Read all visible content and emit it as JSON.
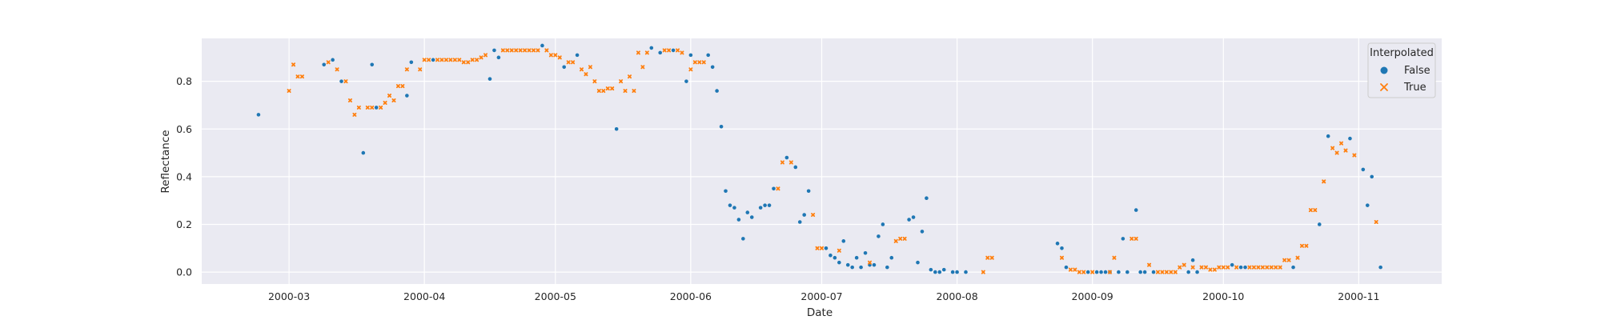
{
  "chart_data": {
    "type": "scatter",
    "xlabel": "Date",
    "ylabel": "Reflectance",
    "xlim": [
      "2000-02-10",
      "2000-11-20"
    ],
    "ylim": [
      -0.05,
      0.98
    ],
    "grid": true,
    "x_ticks": [
      "2000-03-01",
      "2000-04-01",
      "2000-05-01",
      "2000-06-01",
      "2000-07-01",
      "2000-08-01",
      "2000-09-01",
      "2000-10-01",
      "2000-11-01"
    ],
    "x_tick_labels": [
      "2000-03",
      "2000-04",
      "2000-05",
      "2000-06",
      "2000-07",
      "2000-08",
      "2000-09",
      "2000-10",
      "2000-11"
    ],
    "y_ticks": [
      0.0,
      0.2,
      0.4,
      0.6,
      0.8
    ],
    "y_tick_labels": [
      "0.0",
      "0.2",
      "0.4",
      "0.6",
      "0.8"
    ],
    "legend": {
      "title": "Interpolated",
      "placement": "upper right"
    },
    "series": [
      {
        "name": "False",
        "color": "#1f77b4",
        "marker": "circle",
        "points": [
          [
            "2000-02-23",
            0.66
          ],
          [
            "2000-03-09",
            0.87
          ],
          [
            "2000-03-11",
            0.89
          ],
          [
            "2000-03-13",
            0.8
          ],
          [
            "2000-03-18",
            0.5
          ],
          [
            "2000-03-20",
            0.87
          ],
          [
            "2000-03-21",
            0.69
          ],
          [
            "2000-03-28",
            0.74
          ],
          [
            "2000-03-29",
            0.88
          ],
          [
            "2000-04-03",
            0.89
          ],
          [
            "2000-04-16",
            0.81
          ],
          [
            "2000-04-17",
            0.93
          ],
          [
            "2000-04-18",
            0.9
          ],
          [
            "2000-04-28",
            0.95
          ],
          [
            "2000-05-03",
            0.86
          ],
          [
            "2000-05-06",
            0.91
          ],
          [
            "2000-05-15",
            0.6
          ],
          [
            "2000-05-23",
            0.94
          ],
          [
            "2000-05-25",
            0.92
          ],
          [
            "2000-05-28",
            0.93
          ],
          [
            "2000-05-31",
            0.8
          ],
          [
            "2000-06-01",
            0.91
          ],
          [
            "2000-06-05",
            0.91
          ],
          [
            "2000-06-06",
            0.86
          ],
          [
            "2000-06-07",
            0.76
          ],
          [
            "2000-06-08",
            0.61
          ],
          [
            "2000-06-09",
            0.34
          ],
          [
            "2000-06-10",
            0.28
          ],
          [
            "2000-06-11",
            0.27
          ],
          [
            "2000-06-12",
            0.22
          ],
          [
            "2000-06-13",
            0.14
          ],
          [
            "2000-06-14",
            0.25
          ],
          [
            "2000-06-15",
            0.23
          ],
          [
            "2000-06-17",
            0.27
          ],
          [
            "2000-06-18",
            0.28
          ],
          [
            "2000-06-19",
            0.28
          ],
          [
            "2000-06-20",
            0.35
          ],
          [
            "2000-06-23",
            0.48
          ],
          [
            "2000-06-25",
            0.44
          ],
          [
            "2000-06-26",
            0.21
          ],
          [
            "2000-06-27",
            0.24
          ],
          [
            "2000-06-28",
            0.34
          ],
          [
            "2000-07-02",
            0.1
          ],
          [
            "2000-07-03",
            0.07
          ],
          [
            "2000-07-04",
            0.06
          ],
          [
            "2000-07-05",
            0.04
          ],
          [
            "2000-07-06",
            0.13
          ],
          [
            "2000-07-07",
            0.03
          ],
          [
            "2000-07-08",
            0.02
          ],
          [
            "2000-07-09",
            0.06
          ],
          [
            "2000-07-10",
            0.02
          ],
          [
            "2000-07-11",
            0.08
          ],
          [
            "2000-07-12",
            0.03
          ],
          [
            "2000-07-13",
            0.03
          ],
          [
            "2000-07-14",
            0.15
          ],
          [
            "2000-07-15",
            0.2
          ],
          [
            "2000-07-16",
            0.02
          ],
          [
            "2000-07-17",
            0.06
          ],
          [
            "2000-07-21",
            0.22
          ],
          [
            "2000-07-22",
            0.23
          ],
          [
            "2000-07-23",
            0.04
          ],
          [
            "2000-07-24",
            0.17
          ],
          [
            "2000-07-25",
            0.31
          ],
          [
            "2000-07-26",
            0.01
          ],
          [
            "2000-07-27",
            0.0
          ],
          [
            "2000-07-28",
            0.0
          ],
          [
            "2000-07-29",
            0.01
          ],
          [
            "2000-07-31",
            0.0
          ],
          [
            "2000-08-01",
            0.0
          ],
          [
            "2000-08-03",
            0.0
          ],
          [
            "2000-08-24",
            0.12
          ],
          [
            "2000-08-25",
            0.1
          ],
          [
            "2000-08-26",
            0.02
          ],
          [
            "2000-08-31",
            0.0
          ],
          [
            "2000-09-02",
            0.0
          ],
          [
            "2000-09-03",
            0.0
          ],
          [
            "2000-09-04",
            0.0
          ],
          [
            "2000-09-05",
            0.0
          ],
          [
            "2000-09-07",
            0.0
          ],
          [
            "2000-09-08",
            0.14
          ],
          [
            "2000-09-09",
            0.0
          ],
          [
            "2000-09-11",
            0.26
          ],
          [
            "2000-09-12",
            0.0
          ],
          [
            "2000-09-13",
            0.0
          ],
          [
            "2000-09-15",
            0.0
          ],
          [
            "2000-09-23",
            0.0
          ],
          [
            "2000-09-24",
            0.05
          ],
          [
            "2000-09-25",
            0.0
          ],
          [
            "2000-10-03",
            0.03
          ],
          [
            "2000-10-05",
            0.02
          ],
          [
            "2000-10-06",
            0.02
          ],
          [
            "2000-10-17",
            0.02
          ],
          [
            "2000-10-23",
            0.2
          ],
          [
            "2000-10-25",
            0.57
          ],
          [
            "2000-10-30",
            0.56
          ],
          [
            "2000-11-02",
            0.43
          ],
          [
            "2000-11-03",
            0.28
          ],
          [
            "2000-11-04",
            0.4
          ],
          [
            "2000-11-06",
            0.02
          ]
        ]
      },
      {
        "name": "True",
        "color": "#ff7f0e",
        "marker": "x",
        "points": [
          [
            "2000-03-01",
            0.76
          ],
          [
            "2000-03-02",
            0.87
          ],
          [
            "2000-03-03",
            0.82
          ],
          [
            "2000-03-04",
            0.82
          ],
          [
            "2000-03-10",
            0.88
          ],
          [
            "2000-03-12",
            0.85
          ],
          [
            "2000-03-14",
            0.8
          ],
          [
            "2000-03-15",
            0.72
          ],
          [
            "2000-03-16",
            0.66
          ],
          [
            "2000-03-17",
            0.69
          ],
          [
            "2000-03-19",
            0.69
          ],
          [
            "2000-03-20",
            0.69
          ],
          [
            "2000-03-22",
            0.69
          ],
          [
            "2000-03-23",
            0.71
          ],
          [
            "2000-03-24",
            0.74
          ],
          [
            "2000-03-25",
            0.72
          ],
          [
            "2000-03-26",
            0.78
          ],
          [
            "2000-03-27",
            0.78
          ],
          [
            "2000-03-28",
            0.85
          ],
          [
            "2000-03-31",
            0.85
          ],
          [
            "2000-04-01",
            0.89
          ],
          [
            "2000-04-02",
            0.89
          ],
          [
            "2000-04-04",
            0.89
          ],
          [
            "2000-04-05",
            0.89
          ],
          [
            "2000-04-06",
            0.89
          ],
          [
            "2000-04-07",
            0.89
          ],
          [
            "2000-04-08",
            0.89
          ],
          [
            "2000-04-09",
            0.89
          ],
          [
            "2000-04-10",
            0.88
          ],
          [
            "2000-04-11",
            0.88
          ],
          [
            "2000-04-12",
            0.89
          ],
          [
            "2000-04-13",
            0.89
          ],
          [
            "2000-04-14",
            0.9
          ],
          [
            "2000-04-15",
            0.91
          ],
          [
            "2000-04-19",
            0.93
          ],
          [
            "2000-04-20",
            0.93
          ],
          [
            "2000-04-21",
            0.93
          ],
          [
            "2000-04-22",
            0.93
          ],
          [
            "2000-04-23",
            0.93
          ],
          [
            "2000-04-24",
            0.93
          ],
          [
            "2000-04-25",
            0.93
          ],
          [
            "2000-04-26",
            0.93
          ],
          [
            "2000-04-27",
            0.93
          ],
          [
            "2000-04-29",
            0.93
          ],
          [
            "2000-04-30",
            0.91
          ],
          [
            "2000-05-01",
            0.91
          ],
          [
            "2000-05-02",
            0.9
          ],
          [
            "2000-05-04",
            0.88
          ],
          [
            "2000-05-05",
            0.88
          ],
          [
            "2000-05-07",
            0.85
          ],
          [
            "2000-05-08",
            0.83
          ],
          [
            "2000-05-09",
            0.86
          ],
          [
            "2000-05-10",
            0.8
          ],
          [
            "2000-05-11",
            0.76
          ],
          [
            "2000-05-12",
            0.76
          ],
          [
            "2000-05-13",
            0.77
          ],
          [
            "2000-05-14",
            0.77
          ],
          [
            "2000-05-16",
            0.8
          ],
          [
            "2000-05-17",
            0.76
          ],
          [
            "2000-05-18",
            0.82
          ],
          [
            "2000-05-19",
            0.76
          ],
          [
            "2000-05-20",
            0.92
          ],
          [
            "2000-05-21",
            0.86
          ],
          [
            "2000-05-22",
            0.92
          ],
          [
            "2000-05-26",
            0.93
          ],
          [
            "2000-05-27",
            0.93
          ],
          [
            "2000-05-29",
            0.93
          ],
          [
            "2000-05-30",
            0.92
          ],
          [
            "2000-06-01",
            0.85
          ],
          [
            "2000-06-02",
            0.88
          ],
          [
            "2000-06-03",
            0.88
          ],
          [
            "2000-06-04",
            0.88
          ],
          [
            "2000-06-21",
            0.35
          ],
          [
            "2000-06-22",
            0.46
          ],
          [
            "2000-06-24",
            0.46
          ],
          [
            "2000-06-29",
            0.24
          ],
          [
            "2000-06-30",
            0.1
          ],
          [
            "2000-07-01",
            0.1
          ],
          [
            "2000-07-05",
            0.09
          ],
          [
            "2000-07-12",
            0.04
          ],
          [
            "2000-07-18",
            0.13
          ],
          [
            "2000-07-19",
            0.14
          ],
          [
            "2000-07-20",
            0.14
          ],
          [
            "2000-08-07",
            0.0
          ],
          [
            "2000-08-08",
            0.06
          ],
          [
            "2000-08-09",
            0.06
          ],
          [
            "2000-08-25",
            0.06
          ],
          [
            "2000-08-27",
            0.01
          ],
          [
            "2000-08-28",
            0.01
          ],
          [
            "2000-08-29",
            0.0
          ],
          [
            "2000-08-30",
            0.0
          ],
          [
            "2000-09-01",
            0.0
          ],
          [
            "2000-09-05",
            0.0
          ],
          [
            "2000-09-06",
            0.06
          ],
          [
            "2000-09-10",
            0.14
          ],
          [
            "2000-09-11",
            0.14
          ],
          [
            "2000-09-14",
            0.03
          ],
          [
            "2000-09-16",
            0.0
          ],
          [
            "2000-09-17",
            0.0
          ],
          [
            "2000-09-18",
            0.0
          ],
          [
            "2000-09-19",
            0.0
          ],
          [
            "2000-09-20",
            0.0
          ],
          [
            "2000-09-21",
            0.02
          ],
          [
            "2000-09-22",
            0.03
          ],
          [
            "2000-09-24",
            0.02
          ],
          [
            "2000-09-26",
            0.02
          ],
          [
            "2000-09-27",
            0.02
          ],
          [
            "2000-09-28",
            0.01
          ],
          [
            "2000-09-29",
            0.01
          ],
          [
            "2000-09-30",
            0.02
          ],
          [
            "2000-10-01",
            0.02
          ],
          [
            "2000-10-02",
            0.02
          ],
          [
            "2000-10-04",
            0.02
          ],
          [
            "2000-10-07",
            0.02
          ],
          [
            "2000-10-08",
            0.02
          ],
          [
            "2000-10-09",
            0.02
          ],
          [
            "2000-10-10",
            0.02
          ],
          [
            "2000-10-11",
            0.02
          ],
          [
            "2000-10-12",
            0.02
          ],
          [
            "2000-10-13",
            0.02
          ],
          [
            "2000-10-14",
            0.02
          ],
          [
            "2000-10-15",
            0.05
          ],
          [
            "2000-10-16",
            0.05
          ],
          [
            "2000-10-18",
            0.06
          ],
          [
            "2000-10-19",
            0.11
          ],
          [
            "2000-10-20",
            0.11
          ],
          [
            "2000-10-21",
            0.26
          ],
          [
            "2000-10-22",
            0.26
          ],
          [
            "2000-10-24",
            0.38
          ],
          [
            "2000-10-26",
            0.52
          ],
          [
            "2000-10-27",
            0.5
          ],
          [
            "2000-10-28",
            0.54
          ],
          [
            "2000-10-29",
            0.51
          ],
          [
            "2000-10-31",
            0.49
          ],
          [
            "2000-11-05",
            0.21
          ]
        ]
      }
    ]
  }
}
